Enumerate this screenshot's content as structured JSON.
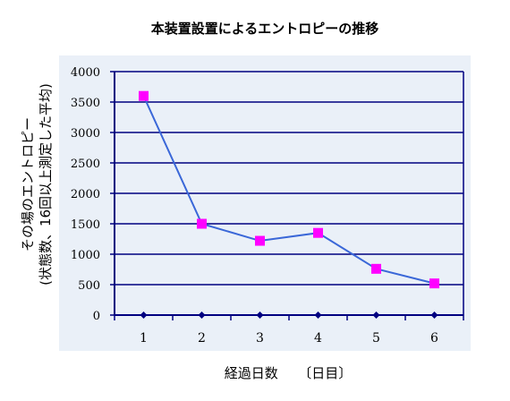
{
  "chart_data": {
    "type": "line",
    "title": "本装置設置によるエントロピーの推移",
    "xlabel": "経過日数　　〔日目〕",
    "ylabel_line1": "その場のエントロピー",
    "ylabel_line2": "(状態数、16回以上測定した平均)",
    "categories": [
      "1",
      "2",
      "3",
      "4",
      "5",
      "6"
    ],
    "ylim": [
      0,
      4000
    ],
    "y_ticks": [
      "0",
      "500",
      "1000",
      "1500",
      "2000",
      "2500",
      "3000",
      "3500",
      "4000"
    ],
    "grid": true,
    "series": [
      {
        "values": [
          3600,
          1500,
          1220,
          1350,
          760,
          520
        ],
        "marker": "square"
      },
      {
        "values": [
          0,
          0,
          0,
          0,
          0,
          0
        ],
        "marker": "diamond"
      }
    ],
    "colors": {
      "plot_background": "#eaf0f8",
      "grid": "#000080",
      "line": "#3a67d8",
      "marker_main": "#ff00ff",
      "marker_baseline": "#000080"
    }
  }
}
